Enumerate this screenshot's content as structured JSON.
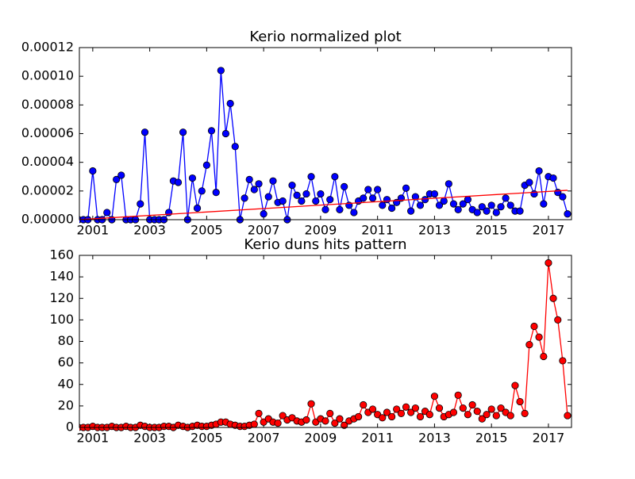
{
  "chart_data": [
    {
      "type": "line",
      "title": "Kerio normalized plot",
      "x": [
        2000.5,
        2000.67,
        2000.83,
        2001,
        2001.17,
        2001.33,
        2001.5,
        2001.67,
        2001.83,
        2002,
        2002.17,
        2002.33,
        2002.5,
        2002.67,
        2002.83,
        2003,
        2003.17,
        2003.33,
        2003.5,
        2003.67,
        2003.83,
        2004,
        2004.17,
        2004.33,
        2004.5,
        2004.67,
        2004.83,
        2005,
        2005.17,
        2005.33,
        2005.5,
        2005.67,
        2005.83,
        2006,
        2006.17,
        2006.33,
        2006.5,
        2006.67,
        2006.83,
        2007,
        2007.17,
        2007.33,
        2007.5,
        2007.67,
        2007.83,
        2008,
        2008.17,
        2008.33,
        2008.5,
        2008.67,
        2008.83,
        2009,
        2009.17,
        2009.33,
        2009.5,
        2009.67,
        2009.83,
        2010,
        2010.17,
        2010.33,
        2010.5,
        2010.67,
        2010.83,
        2011,
        2011.17,
        2011.33,
        2011.5,
        2011.67,
        2011.83,
        2012,
        2012.17,
        2012.33,
        2012.5,
        2012.67,
        2012.83,
        2013,
        2013.17,
        2013.33,
        2013.5,
        2013.67,
        2013.83,
        2014,
        2014.17,
        2014.33,
        2014.5,
        2014.67,
        2014.83,
        2015,
        2015.17,
        2015.33,
        2015.5,
        2015.67,
        2015.83,
        2016,
        2016.17,
        2016.33,
        2016.5,
        2016.67,
        2016.83,
        2017,
        2017.17,
        2017.33,
        2017.5,
        2017.67
      ],
      "series": [
        {
          "color": "#0000ff",
          "values": [
            0,
            0,
            0,
            3.4e-05,
            0,
            0,
            5e-06,
            0,
            2.8e-05,
            3.1e-05,
            0,
            0,
            0,
            1.1e-05,
            6.1e-05,
            0,
            0,
            0,
            0,
            5e-06,
            2.7e-05,
            2.6e-05,
            6.1e-05,
            0,
            2.9e-05,
            8e-06,
            2e-05,
            3.8e-05,
            6.2e-05,
            1.9e-05,
            0.000104,
            6e-05,
            8.1e-05,
            5.1e-05,
            0,
            1.5e-05,
            2.8e-05,
            2.1e-05,
            2.5e-05,
            4e-06,
            1.6e-05,
            2.7e-05,
            1.2e-05,
            1.3e-05,
            0,
            2.4e-05,
            1.7e-05,
            1.3e-05,
            1.8e-05,
            3e-05,
            1.3e-05,
            1.8e-05,
            7e-06,
            1.4e-05,
            3e-05,
            7e-06,
            2.3e-05,
            1e-05,
            5e-06,
            1.3e-05,
            1.5e-05,
            2.1e-05,
            1.5e-05,
            2.1e-05,
            1e-05,
            1.4e-05,
            8e-06,
            1.2e-05,
            1.5e-05,
            2.2e-05,
            6e-06,
            1.6e-05,
            1e-05,
            1.4e-05,
            1.8e-05,
            1.8e-05,
            1e-05,
            1.3e-05,
            2.5e-05,
            1.1e-05,
            7e-06,
            1.1e-05,
            1.4e-05,
            7e-06,
            5e-06,
            9e-06,
            6e-06,
            1e-05,
            5e-06,
            9e-06,
            1.5e-05,
            1e-05,
            6e-06,
            6e-06,
            2.4e-05,
            2.6e-05,
            1.8e-05,
            3.4e-05,
            1.1e-05,
            3e-05,
            2.9e-05,
            1.9e-05,
            1.6e-05,
            4e-06
          ]
        }
      ],
      "trend": {
        "x": [
          2000.5,
          2017.67
        ],
        "values": [
          0,
          2.05e-05
        ],
        "color": "#ff0000"
      },
      "xlim": [
        2000.53,
        2017.81
      ],
      "xticks": [
        2001,
        2003,
        2005,
        2007,
        2009,
        2011,
        2013,
        2015,
        2017
      ],
      "ylim": [
        0,
        0.00012
      ],
      "yticks": [
        {
          "value": 0,
          "label": "0.00000"
        },
        {
          "value": 2e-05,
          "label": "0.00002"
        },
        {
          "value": 4e-05,
          "label": "0.00004"
        },
        {
          "value": 6e-05,
          "label": "0.00006"
        },
        {
          "value": 8e-05,
          "label": "0.00008"
        },
        {
          "value": 0.0001,
          "label": "0.00010"
        },
        {
          "value": 0.00012,
          "label": "0.00012"
        }
      ]
    },
    {
      "type": "line",
      "title": "Kerio duns hits pattern",
      "x": [
        2000.5,
        2000.67,
        2000.83,
        2001,
        2001.17,
        2001.33,
        2001.5,
        2001.67,
        2001.83,
        2002,
        2002.17,
        2002.33,
        2002.5,
        2002.67,
        2002.83,
        2003,
        2003.17,
        2003.33,
        2003.5,
        2003.67,
        2003.83,
        2004,
        2004.17,
        2004.33,
        2004.5,
        2004.67,
        2004.83,
        2005,
        2005.17,
        2005.33,
        2005.5,
        2005.67,
        2005.83,
        2006,
        2006.17,
        2006.33,
        2006.5,
        2006.67,
        2006.83,
        2007,
        2007.17,
        2007.33,
        2007.5,
        2007.67,
        2007.83,
        2008,
        2008.17,
        2008.33,
        2008.5,
        2008.67,
        2008.83,
        2009,
        2009.17,
        2009.33,
        2009.5,
        2009.67,
        2009.83,
        2010,
        2010.17,
        2010.33,
        2010.5,
        2010.67,
        2010.83,
        2011,
        2011.17,
        2011.33,
        2011.5,
        2011.67,
        2011.83,
        2012,
        2012.17,
        2012.33,
        2012.5,
        2012.67,
        2012.83,
        2013,
        2013.17,
        2013.33,
        2013.5,
        2013.67,
        2013.83,
        2014,
        2014.17,
        2014.33,
        2014.5,
        2014.67,
        2014.83,
        2015,
        2015.17,
        2015.33,
        2015.5,
        2015.67,
        2015.83,
        2016,
        2016.17,
        2016.33,
        2016.5,
        2016.67,
        2016.83,
        2017,
        2017.17,
        2017.33,
        2017.5,
        2017.67
      ],
      "series": [
        {
          "color": "#ff0000",
          "values": [
            0,
            0,
            0,
            1,
            0,
            0,
            0,
            1,
            0,
            0,
            1,
            0,
            0,
            2,
            1,
            0,
            0,
            0,
            1,
            1,
            0,
            2,
            1,
            0,
            1,
            2,
            1,
            1,
            2,
            3,
            5,
            5,
            3,
            2,
            1,
            1,
            2,
            3,
            13,
            5,
            8,
            5,
            4,
            11,
            7,
            9,
            6,
            5,
            7,
            22,
            5,
            8,
            6,
            13,
            4,
            8,
            2,
            6,
            8,
            10,
            21,
            14,
            17,
            12,
            9,
            14,
            10,
            17,
            13,
            19,
            14,
            18,
            10,
            15,
            12,
            29,
            18,
            10,
            12,
            14,
            30,
            18,
            12,
            21,
            15,
            8,
            12,
            17,
            11,
            18,
            14,
            11,
            39,
            24,
            13,
            77,
            94,
            84,
            66,
            153,
            120,
            100,
            62,
            11
          ]
        }
      ],
      "xlim": [
        2000.53,
        2017.81
      ],
      "xticks": [
        2001,
        2003,
        2005,
        2007,
        2009,
        2011,
        2013,
        2015,
        2017
      ],
      "ylim": [
        0,
        160
      ],
      "yticks": [
        0,
        20,
        40,
        60,
        80,
        100,
        120,
        140,
        160
      ]
    }
  ]
}
